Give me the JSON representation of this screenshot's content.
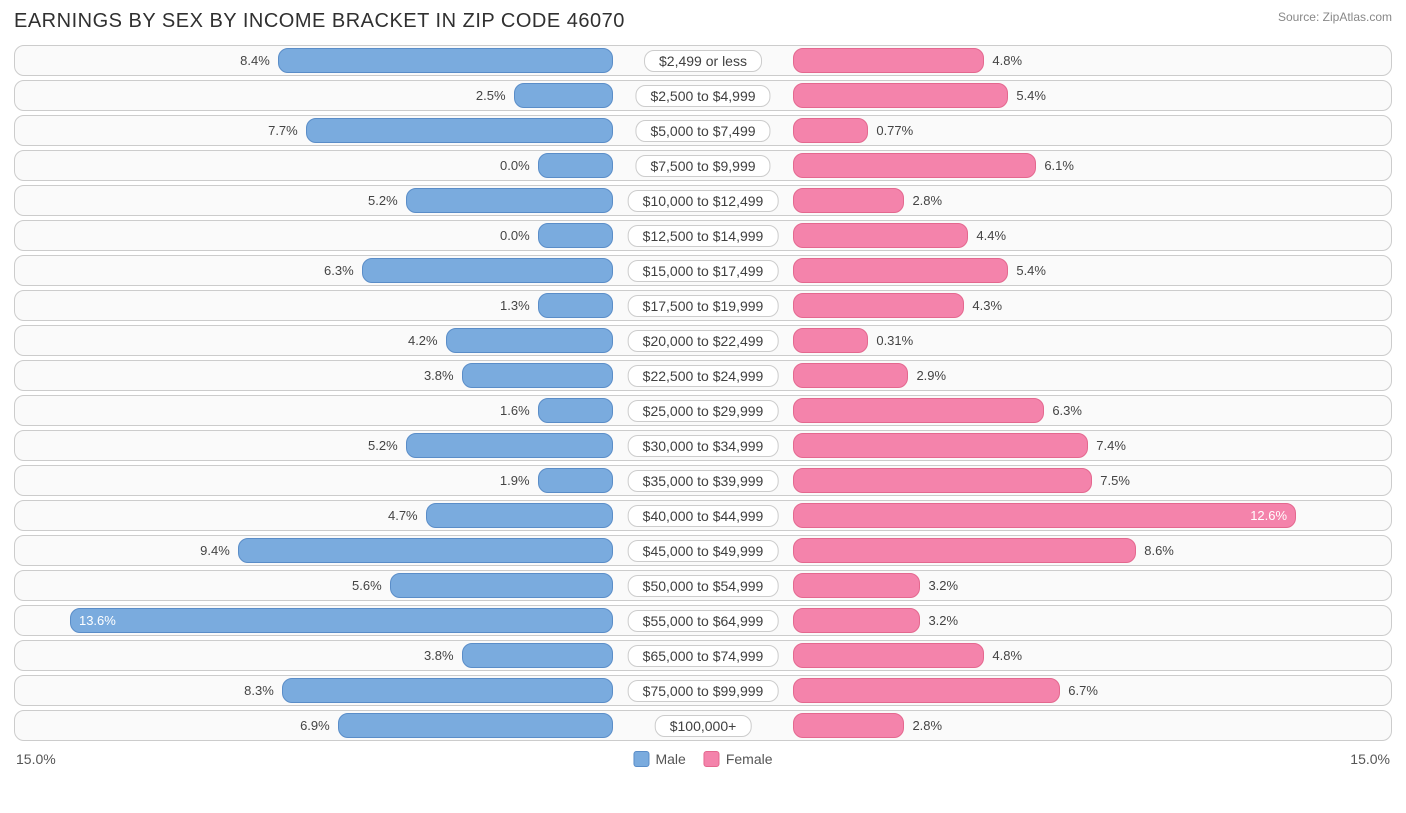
{
  "title": "EARNINGS BY SEX BY INCOME BRACKET IN ZIP CODE 46070",
  "source": "Source: ZipAtlas.com",
  "chart": {
    "type": "diverging-bar",
    "axis_max": 15.0,
    "axis_label_left": "15.0%",
    "axis_label_right": "15.0%",
    "male_color": "#7aabde",
    "male_border": "#5a8dc8",
    "female_color": "#f483ab",
    "female_border": "#e4688f",
    "row_bg": "#fafafa",
    "row_border": "#cccccc",
    "label_bg": "#ffffff",
    "text_color": "#444444",
    "inside_threshold": 11.0,
    "legend": {
      "male": "Male",
      "female": "Female"
    },
    "rows": [
      {
        "category": "$2,499 or less",
        "male": 8.4,
        "male_label": "8.4%",
        "female": 4.8,
        "female_label": "4.8%"
      },
      {
        "category": "$2,500 to $4,999",
        "male": 2.5,
        "male_label": "2.5%",
        "female": 5.4,
        "female_label": "5.4%"
      },
      {
        "category": "$5,000 to $7,499",
        "male": 7.7,
        "male_label": "7.7%",
        "female": 0.77,
        "female_label": "0.77%"
      },
      {
        "category": "$7,500 to $9,999",
        "male": 0.0,
        "male_label": "0.0%",
        "female": 6.1,
        "female_label": "6.1%"
      },
      {
        "category": "$10,000 to $12,499",
        "male": 5.2,
        "male_label": "5.2%",
        "female": 2.8,
        "female_label": "2.8%"
      },
      {
        "category": "$12,500 to $14,999",
        "male": 0.0,
        "male_label": "0.0%",
        "female": 4.4,
        "female_label": "4.4%"
      },
      {
        "category": "$15,000 to $17,499",
        "male": 6.3,
        "male_label": "6.3%",
        "female": 5.4,
        "female_label": "5.4%"
      },
      {
        "category": "$17,500 to $19,999",
        "male": 1.3,
        "male_label": "1.3%",
        "female": 4.3,
        "female_label": "4.3%"
      },
      {
        "category": "$20,000 to $22,499",
        "male": 4.2,
        "male_label": "4.2%",
        "female": 0.31,
        "female_label": "0.31%"
      },
      {
        "category": "$22,500 to $24,999",
        "male": 3.8,
        "male_label": "3.8%",
        "female": 2.9,
        "female_label": "2.9%"
      },
      {
        "category": "$25,000 to $29,999",
        "male": 1.6,
        "male_label": "1.6%",
        "female": 6.3,
        "female_label": "6.3%"
      },
      {
        "category": "$30,000 to $34,999",
        "male": 5.2,
        "male_label": "5.2%",
        "female": 7.4,
        "female_label": "7.4%"
      },
      {
        "category": "$35,000 to $39,999",
        "male": 1.9,
        "male_label": "1.9%",
        "female": 7.5,
        "female_label": "7.5%"
      },
      {
        "category": "$40,000 to $44,999",
        "male": 4.7,
        "male_label": "4.7%",
        "female": 12.6,
        "female_label": "12.6%"
      },
      {
        "category": "$45,000 to $49,999",
        "male": 9.4,
        "male_label": "9.4%",
        "female": 8.6,
        "female_label": "8.6%"
      },
      {
        "category": "$50,000 to $54,999",
        "male": 5.6,
        "male_label": "5.6%",
        "female": 3.2,
        "female_label": "3.2%"
      },
      {
        "category": "$55,000 to $64,999",
        "male": 13.6,
        "male_label": "13.6%",
        "female": 3.2,
        "female_label": "3.2%"
      },
      {
        "category": "$65,000 to $74,999",
        "male": 3.8,
        "male_label": "3.8%",
        "female": 4.8,
        "female_label": "4.8%"
      },
      {
        "category": "$75,000 to $99,999",
        "male": 8.3,
        "male_label": "8.3%",
        "female": 6.7,
        "female_label": "6.7%"
      },
      {
        "category": "$100,000+",
        "male": 6.9,
        "male_label": "6.9%",
        "female": 2.8,
        "female_label": "2.8%"
      }
    ]
  }
}
